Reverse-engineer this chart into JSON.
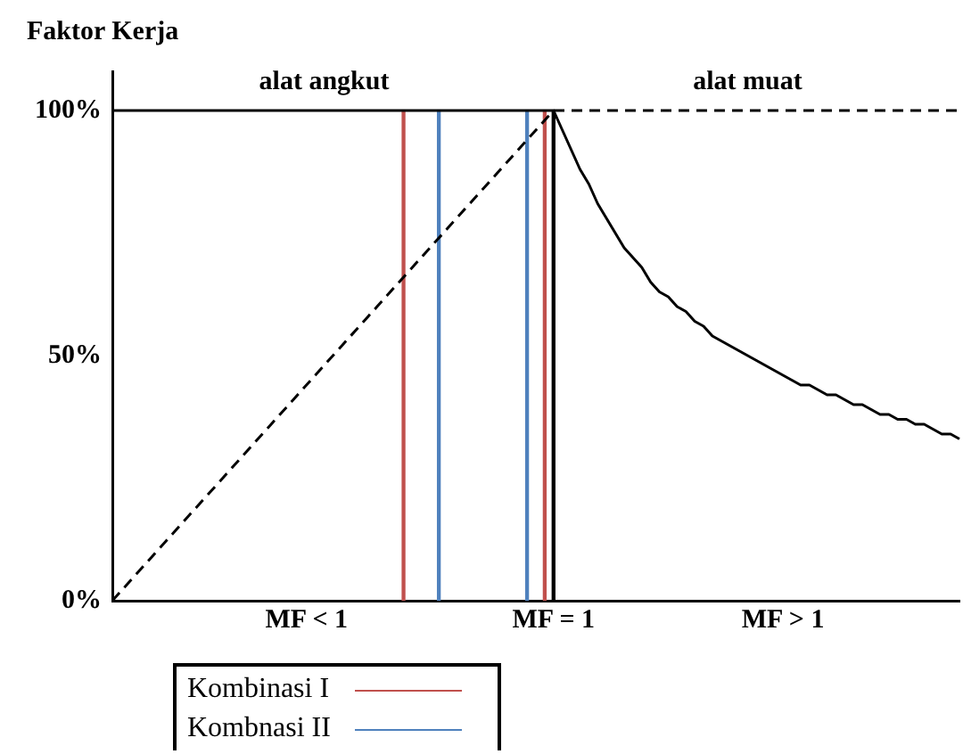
{
  "chart_data": {
    "type": "line",
    "ylabel": "Faktor Kerja",
    "categories": [
      null,
      null,
      null,
      null,
      null,
      null,
      null,
      null,
      null,
      null,
      null,
      null,
      null,
      null,
      null,
      null,
      null,
      null,
      null,
      null,
      null,
      null,
      "MF < 1",
      null,
      null,
      null,
      null,
      null,
      null,
      null,
      null,
      null,
      null,
      null,
      null,
      null,
      null,
      null,
      null,
      null,
      null,
      null,
      null,
      null,
      null,
      null,
      null,
      null,
      null,
      null,
      "MF = 1",
      null,
      null,
      null,
      null,
      null,
      null,
      null,
      null,
      null,
      null,
      null,
      null,
      null,
      null,
      null,
      null,
      null,
      null,
      null,
      null,
      null,
      null,
      null,
      null,
      null,
      "MF > 1",
      null,
      null,
      null,
      null,
      null,
      null,
      null,
      null,
      null,
      null,
      null,
      null,
      null,
      null,
      null,
      null,
      null,
      null,
      null,
      null
    ],
    "ylim": [
      0,
      108
    ],
    "yticks": [
      {
        "value": 0,
        "label": "0%"
      },
      {
        "value": 50,
        "label": "50%"
      },
      {
        "value": 100,
        "label": "100%"
      }
    ],
    "grid": false,
    "legend": "bottom",
    "marker": "none",
    "series": [
      {
        "color": "#000000",
        "line_style": "solid",
        "values": [
          100,
          100,
          100,
          100,
          100,
          100,
          100,
          100,
          100,
          100,
          100,
          100,
          100,
          100,
          100,
          100,
          100,
          100,
          100,
          100,
          100,
          100,
          100,
          100,
          100,
          100,
          100,
          100,
          100,
          100,
          100,
          100,
          100,
          100,
          100,
          100,
          100,
          100,
          100,
          100,
          100,
          100,
          100,
          100,
          100,
          100,
          100,
          100,
          100,
          100,
          100,
          96,
          92,
          88,
          85,
          81,
          78,
          75,
          72,
          70,
          68,
          65,
          63,
          62,
          60,
          59,
          57,
          56,
          54,
          53,
          52,
          51,
          50,
          49,
          48,
          47,
          46,
          45,
          44,
          44,
          43,
          42,
          42,
          41,
          40,
          40,
          39,
          38,
          38,
          37,
          37,
          36,
          36,
          35,
          34,
          34,
          33
        ]
      },
      {
        "color": "#000000",
        "line_style": "dashed",
        "values": [
          0,
          2,
          4,
          6,
          8,
          10,
          12,
          14,
          16,
          18,
          20,
          22,
          24,
          26,
          28,
          30,
          32,
          34,
          36,
          38,
          40,
          42,
          44,
          46,
          48,
          50,
          52,
          54,
          56,
          58,
          60,
          62,
          64,
          66,
          68,
          70,
          72,
          74,
          76,
          78,
          80,
          82,
          84,
          86,
          88,
          90,
          92,
          94,
          96,
          98,
          100,
          100,
          100,
          100,
          100,
          100,
          100,
          100,
          100,
          100,
          100,
          100,
          100,
          100,
          100,
          100,
          100,
          100,
          100,
          100,
          100,
          100,
          100,
          100,
          100,
          100,
          100,
          100,
          100,
          100,
          100,
          100,
          100,
          100,
          100,
          100,
          100,
          100,
          100,
          100,
          100,
          100,
          100,
          100,
          100,
          100,
          100
        ]
      },
      {
        "type": "bar",
        "color": "#000000",
        "values": [
          null,
          null,
          null,
          null,
          null,
          null,
          null,
          null,
          null,
          null,
          null,
          null,
          null,
          null,
          null,
          null,
          null,
          null,
          null,
          null,
          null,
          null,
          null,
          null,
          null,
          null,
          null,
          null,
          null,
          null,
          null,
          null,
          null,
          null,
          null,
          null,
          null,
          null,
          null,
          null,
          null,
          null,
          null,
          null,
          null,
          null,
          null,
          null,
          null,
          null,
          100,
          null,
          null,
          null,
          null,
          null,
          null,
          null,
          null,
          null,
          null,
          null,
          null,
          null,
          null,
          null,
          null,
          null,
          null,
          null,
          null,
          null,
          null,
          null,
          null,
          null,
          null,
          null,
          null,
          null,
          null,
          null,
          null,
          null,
          null,
          null,
          null,
          null,
          null,
          null,
          null,
          null,
          null,
          null,
          null,
          null,
          null
        ]
      },
      {
        "type": "bar",
        "name": "Kombinasi I",
        "color": "#c0504d",
        "values": [
          null,
          null,
          null,
          null,
          null,
          null,
          null,
          null,
          null,
          null,
          null,
          null,
          null,
          null,
          null,
          null,
          null,
          null,
          null,
          null,
          null,
          null,
          null,
          null,
          null,
          null,
          null,
          null,
          null,
          null,
          null,
          null,
          null,
          100,
          null,
          null,
          null,
          null,
          null,
          null,
          null,
          null,
          null,
          null,
          null,
          null,
          null,
          null,
          null,
          100,
          null,
          null,
          null,
          null,
          null,
          null,
          null,
          null,
          null,
          null,
          null,
          null,
          null,
          null,
          null,
          null,
          null,
          null,
          null,
          null,
          null,
          null,
          null,
          null,
          null,
          null,
          null,
          null,
          null,
          null,
          null,
          null,
          null,
          null,
          null,
          null,
          null,
          null,
          null,
          null,
          null,
          null,
          null,
          null,
          null,
          null,
          null
        ]
      },
      {
        "type": "bar",
        "name": "Kombnasi II",
        "color": "#4f81bd",
        "values": [
          null,
          null,
          null,
          null,
          null,
          null,
          null,
          null,
          null,
          null,
          null,
          null,
          null,
          null,
          null,
          null,
          null,
          null,
          null,
          null,
          null,
          null,
          null,
          null,
          null,
          null,
          null,
          null,
          null,
          null,
          null,
          null,
          null,
          null,
          null,
          null,
          null,
          100,
          null,
          null,
          null,
          null,
          null,
          null,
          null,
          null,
          null,
          100,
          null,
          null,
          null,
          null,
          null,
          null,
          null,
          null,
          null,
          null,
          null,
          null,
          null,
          null,
          null,
          null,
          null,
          null,
          null,
          null,
          null,
          null,
          null,
          null,
          null,
          null,
          null,
          null,
          null,
          null,
          null,
          null,
          null,
          null,
          null,
          null,
          null,
          null,
          null,
          null,
          null,
          null,
          null,
          null,
          null,
          null,
          null,
          null,
          null
        ]
      }
    ],
    "annotations": [
      "alat angkut",
      "alat muat"
    ]
  }
}
